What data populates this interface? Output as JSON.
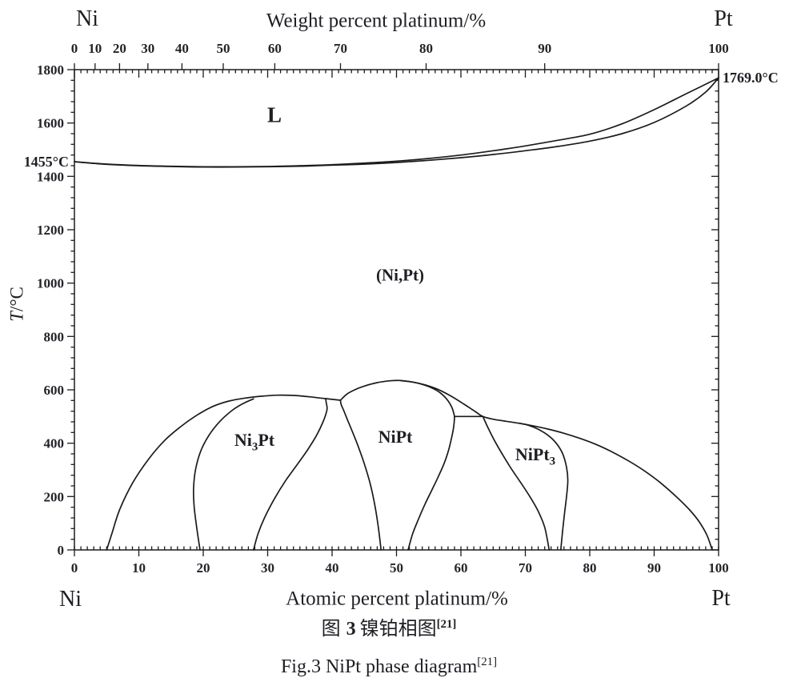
{
  "captions": {
    "zh": {
      "prefix": "图",
      "number": "3",
      "title": "镍铂相图",
      "ref": "[21]"
    },
    "en": {
      "text": "Fig.3 NiPt phase diagram",
      "ref": "[21]"
    }
  },
  "chart_data": {
    "type": "line",
    "corners": {
      "top_left": "Ni",
      "top_right": "Pt",
      "bottom_left": "Ni",
      "bottom_right": "Pt"
    },
    "x_top": {
      "label": "Weight percent platinum/%",
      "minor_step": 1,
      "medium_step": 10,
      "ticks": [
        {
          "label": "0",
          "at": 0
        },
        {
          "label": "10",
          "at": 3.2
        },
        {
          "label": "20",
          "at": 7.0
        },
        {
          "label": "30",
          "at": 11.4
        },
        {
          "label": "40",
          "at": 16.7
        },
        {
          "label": "50",
          "at": 23.1
        },
        {
          "label": "60",
          "at": 31.1
        },
        {
          "label": "70",
          "at": 41.3
        },
        {
          "label": "80",
          "at": 54.6
        },
        {
          "label": "90",
          "at": 73.0
        },
        {
          "label": "100",
          "at": 100
        }
      ]
    },
    "x_bottom": {
      "label": "Atomic percent platinum/%",
      "min": 0,
      "max": 100,
      "minor_step": 1,
      "major_ticks": [
        0,
        10,
        20,
        30,
        40,
        50,
        60,
        70,
        80,
        90,
        100
      ]
    },
    "y": {
      "label_symbol": "T",
      "label_rest": "/°C",
      "min": 0,
      "max": 1800,
      "minor_step": 40,
      "major_ticks": [
        0,
        200,
        400,
        600,
        800,
        1000,
        1200,
        1400,
        1600,
        1800
      ]
    },
    "grid": false,
    "legend": "none",
    "temps": {
      "left": {
        "text": "1455°C",
        "at": [
          0,
          1455
        ]
      },
      "right": {
        "text": "1769.0°C",
        "at": [
          100,
          1769
        ]
      }
    },
    "regions": {
      "liquid": {
        "text": "L",
        "at": [
          31,
          1630
        ]
      },
      "disordered": {
        "text": "(Ni,Pt)",
        "at": [
          50.5,
          1030
        ]
      },
      "ni3pt": {
        "pre": "Ni",
        "sub": "3",
        "post": "Pt",
        "at": [
          28,
          410
        ]
      },
      "nipt": {
        "text": "NiPt",
        "at": [
          49.8,
          422
        ]
      },
      "nipt3": {
        "pre": "NiPt",
        "sub": "3",
        "post": "",
        "at": [
          71.5,
          355
        ]
      }
    },
    "series": [
      {
        "name": "liquidus",
        "points": [
          [
            0,
            1455
          ],
          [
            5,
            1446
          ],
          [
            10,
            1441
          ],
          [
            15,
            1438
          ],
          [
            20,
            1436
          ],
          [
            25,
            1436
          ],
          [
            30,
            1437
          ],
          [
            35,
            1440
          ],
          [
            40,
            1444
          ],
          [
            45,
            1450
          ],
          [
            50,
            1457
          ],
          [
            55,
            1467
          ],
          [
            60,
            1480
          ],
          [
            65,
            1496
          ],
          [
            70,
            1514
          ],
          [
            75,
            1535
          ],
          [
            80,
            1558
          ],
          [
            85,
            1597
          ],
          [
            90,
            1650
          ],
          [
            95,
            1710
          ],
          [
            100,
            1769
          ]
        ]
      },
      {
        "name": "solidus",
        "points": [
          [
            0,
            1455
          ],
          [
            5,
            1445
          ],
          [
            10,
            1440
          ],
          [
            15,
            1437
          ],
          [
            20,
            1435
          ],
          [
            25,
            1435
          ],
          [
            30,
            1436
          ],
          [
            35,
            1438
          ],
          [
            40,
            1442
          ],
          [
            45,
            1446
          ],
          [
            50,
            1452
          ],
          [
            55,
            1460
          ],
          [
            60,
            1470
          ],
          [
            65,
            1482
          ],
          [
            70,
            1496
          ],
          [
            75,
            1512
          ],
          [
            80,
            1532
          ],
          [
            85,
            1560
          ],
          [
            90,
            1602
          ],
          [
            95,
            1664
          ],
          [
            98,
            1716
          ],
          [
            100,
            1769
          ]
        ]
      },
      {
        "name": "order-disorder-envelope-left",
        "points": [
          [
            5,
            0
          ],
          [
            5.8,
            60
          ],
          [
            7,
            150
          ],
          [
            9,
            250
          ],
          [
            11.5,
            340
          ],
          [
            14,
            410
          ],
          [
            16.5,
            462
          ],
          [
            19,
            505
          ],
          [
            21.5,
            538
          ],
          [
            24,
            558
          ],
          [
            26.5,
            569
          ],
          [
            29,
            576
          ],
          [
            31.5,
            580
          ],
          [
            34,
            579
          ],
          [
            36.5,
            574
          ],
          [
            38.2,
            569
          ],
          [
            39,
            567
          ]
        ]
      },
      {
        "name": "tie-line-ni3pt-nipt",
        "points": [
          [
            39,
            567
          ],
          [
            41.3,
            561
          ]
        ]
      },
      {
        "name": "nipt-dome-top",
        "points": [
          [
            41.3,
            561
          ],
          [
            42.3,
            584
          ],
          [
            43.5,
            600
          ],
          [
            45,
            614
          ],
          [
            47,
            627
          ],
          [
            49,
            634
          ],
          [
            50.5,
            635
          ],
          [
            52,
            631
          ],
          [
            53.5,
            624
          ],
          [
            55,
            612
          ],
          [
            56.5,
            594
          ],
          [
            57.7,
            568
          ],
          [
            58.6,
            534
          ],
          [
            59,
            500
          ]
        ]
      },
      {
        "name": "order-disorder-envelope-right",
        "points": [
          [
            50.5,
            635
          ],
          [
            52.5,
            629
          ],
          [
            54.5,
            618
          ],
          [
            56.5,
            601
          ],
          [
            58.5,
            576
          ],
          [
            60.5,
            546
          ],
          [
            62.2,
            519
          ],
          [
            63.4,
            500
          ],
          [
            65,
            490
          ],
          [
            67,
            482
          ],
          [
            69,
            475
          ],
          [
            71,
            466
          ],
          [
            73.5,
            453
          ],
          [
            76,
            437
          ],
          [
            78.5,
            418
          ],
          [
            81,
            395
          ],
          [
            83.5,
            367
          ],
          [
            86,
            334
          ],
          [
            88.5,
            296
          ],
          [
            91,
            251
          ],
          [
            93.5,
            198
          ],
          [
            95.5,
            150
          ],
          [
            97,
            105
          ],
          [
            98.2,
            55
          ],
          [
            99,
            0
          ]
        ]
      },
      {
        "name": "tie-line-nipt-nipt3",
        "points": [
          [
            59,
            500
          ],
          [
            63.4,
            500
          ]
        ]
      },
      {
        "name": "ni3pt-left-boundary",
        "points": [
          [
            19.5,
            0
          ],
          [
            19,
            80
          ],
          [
            18.6,
            160
          ],
          [
            18.5,
            230
          ],
          [
            18.8,
            300
          ],
          [
            19.6,
            370
          ],
          [
            20.9,
            430
          ],
          [
            22.6,
            482
          ],
          [
            24.6,
            525
          ],
          [
            26.3,
            550
          ],
          [
            27.8,
            566
          ]
        ]
      },
      {
        "name": "ni3pt-right-boundary",
        "points": [
          [
            27.8,
            0
          ],
          [
            28.5,
            60
          ],
          [
            29.5,
            120
          ],
          [
            31,
            190
          ],
          [
            32.8,
            260
          ],
          [
            34.6,
            320
          ],
          [
            36.2,
            375
          ],
          [
            37.6,
            430
          ],
          [
            38.6,
            480
          ],
          [
            39.2,
            525
          ],
          [
            39.1,
            550
          ],
          [
            39,
            567
          ]
        ]
      },
      {
        "name": "nipt-left-boundary",
        "points": [
          [
            47.6,
            0
          ],
          [
            47.2,
            80
          ],
          [
            46.7,
            160
          ],
          [
            46,
            240
          ],
          [
            45.1,
            315
          ],
          [
            44.1,
            385
          ],
          [
            43.2,
            440
          ],
          [
            42.4,
            487
          ],
          [
            41.8,
            523
          ],
          [
            41.4,
            545
          ],
          [
            41.3,
            561
          ]
        ]
      },
      {
        "name": "nipt-right-boundary",
        "points": [
          [
            51.8,
            0
          ],
          [
            52.5,
            60
          ],
          [
            53.4,
            115
          ],
          [
            54.4,
            170
          ],
          [
            55.5,
            225
          ],
          [
            56.5,
            275
          ],
          [
            57.4,
            325
          ],
          [
            58.1,
            375
          ],
          [
            58.6,
            425
          ],
          [
            58.9,
            465
          ],
          [
            59,
            500
          ]
        ]
      },
      {
        "name": "nipt3-left-boundary",
        "points": [
          [
            63.4,
            500
          ],
          [
            64.2,
            458
          ],
          [
            65.2,
            410
          ],
          [
            66.4,
            360
          ],
          [
            67.8,
            305
          ],
          [
            69.2,
            255
          ],
          [
            70.7,
            200
          ],
          [
            72,
            145
          ],
          [
            73,
            85
          ],
          [
            73.7,
            0
          ]
        ]
      },
      {
        "name": "nipt3-right-boundary",
        "points": [
          [
            69,
            475
          ],
          [
            70.5,
            467
          ],
          [
            72,
            452
          ],
          [
            73.5,
            430
          ],
          [
            74.8,
            400
          ],
          [
            75.8,
            360
          ],
          [
            76.4,
            310
          ],
          [
            76.6,
            260
          ],
          [
            76.4,
            200
          ],
          [
            76.1,
            140
          ],
          [
            75.8,
            75
          ],
          [
            75.5,
            0
          ]
        ]
      }
    ]
  }
}
